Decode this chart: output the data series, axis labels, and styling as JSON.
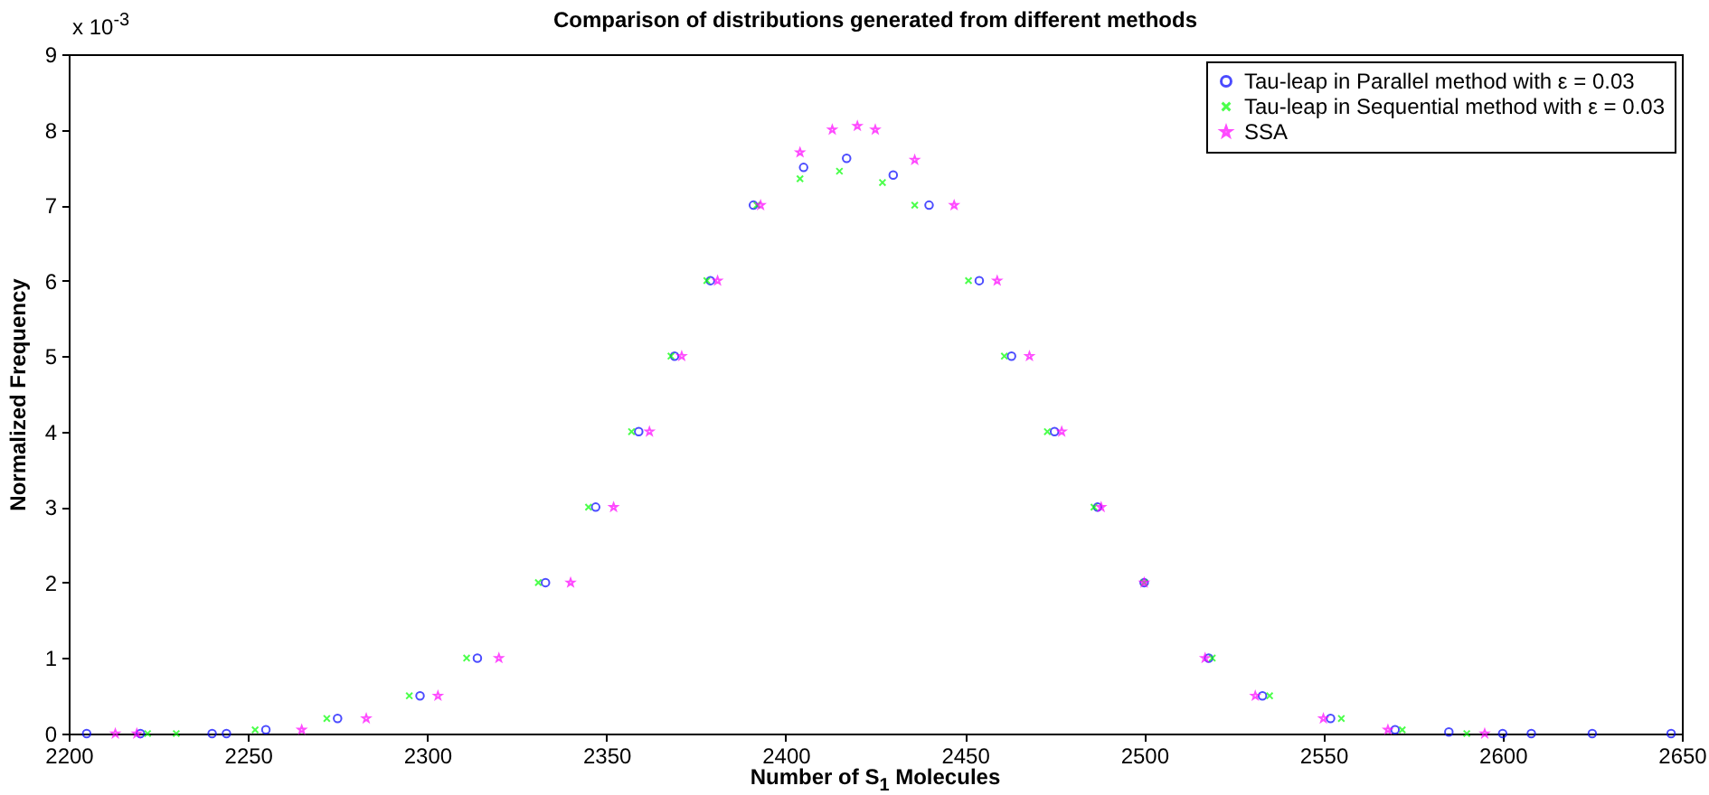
{
  "chart_data": {
    "type": "scatter",
    "title": "Comparison of distributions generated from different methods",
    "xlabel": "Number of S$_{1}$ Molecules",
    "ylabel": "Normalized Frequency",
    "annotations": [
      "x 10$^{-3}$"
    ],
    "xlim": [
      2200,
      2650
    ],
    "ylim": [
      0,
      9
    ],
    "xticks": [
      2200,
      2250,
      2300,
      2350,
      2400,
      2450,
      2500,
      2550,
      2600,
      2650
    ],
    "yticks": [
      0,
      1,
      2,
      3,
      4,
      5,
      6,
      7,
      8,
      9
    ],
    "grid": false,
    "legend": "top right",
    "series": [
      {
        "name": "Tau-leap in Parallel method with ε = 0.03",
        "color": "#0000ff",
        "marker": "circle",
        "x": [
          2205,
          2220,
          2240,
          2244,
          2255,
          2275,
          2298,
          2314,
          2333,
          2347,
          2359,
          2369,
          2379,
          2391,
          2405,
          2417,
          2430,
          2440,
          2454,
          2463,
          2475,
          2487,
          2500,
          2518,
          2533,
          2552,
          2570,
          2585,
          2600,
          2608,
          2625,
          2647
        ],
        "values": [
          0,
          0,
          0,
          0,
          0.05,
          0.2,
          0.5,
          1,
          2,
          3,
          4,
          5,
          6,
          7,
          7.5,
          7.62,
          7.4,
          7,
          6,
          5,
          4,
          3,
          2,
          1,
          0.5,
          0.2,
          0.05,
          0.02,
          0,
          0,
          0,
          0
        ]
      },
      {
        "name": "Tau-leap in Sequential method with ε = 0.03",
        "color": "#00ff00",
        "marker": "cross",
        "x": [
          2222,
          2230,
          2252,
          2272,
          2295,
          2311,
          2331,
          2345,
          2357,
          2368,
          2378,
          2392,
          2404,
          2415,
          2427,
          2436,
          2451,
          2461,
          2473,
          2486,
          2500,
          2519,
          2535,
          2555,
          2572,
          2590
        ],
        "values": [
          0,
          0,
          0.05,
          0.2,
          0.5,
          1,
          2,
          3,
          4,
          5,
          6,
          7,
          7.35,
          7.45,
          7.3,
          7,
          6,
          5,
          4,
          3,
          2,
          1,
          0.5,
          0.2,
          0.05,
          0
        ]
      },
      {
        "name": "SSA",
        "color": "#ff00ff",
        "marker": "star",
        "x": [
          2213,
          2219,
          2265,
          2283,
          2303,
          2320,
          2340,
          2352,
          2362,
          2371,
          2381,
          2393,
          2404,
          2413,
          2420,
          2425,
          2436,
          2447,
          2459,
          2468,
          2477,
          2488,
          2500,
          2517,
          2531,
          2550,
          2568,
          2595
        ],
        "values": [
          0,
          0,
          0.05,
          0.2,
          0.5,
          1,
          2,
          3,
          4,
          5,
          6,
          7,
          7.7,
          8,
          8.05,
          8,
          7.6,
          7,
          6,
          5,
          4,
          3,
          2,
          1,
          0.5,
          0.2,
          0.05,
          0
        ]
      }
    ]
  }
}
